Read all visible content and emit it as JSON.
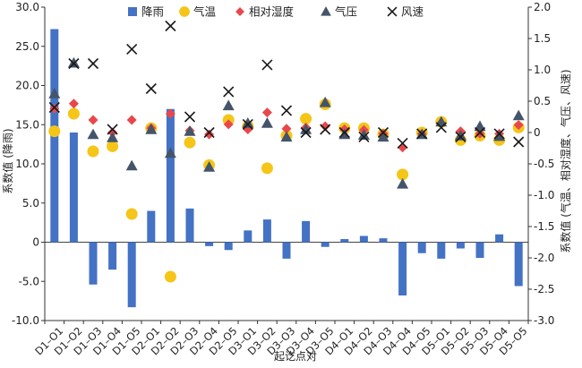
{
  "chart_data": {
    "type": "bar+scatter",
    "xlabel": "起讫点对",
    "ylabel_left": "系数值 (降雨)",
    "ylabel_right": "系数值 (气温、相对湿度、气压、风速)",
    "ylim_left": [
      -10,
      30
    ],
    "ylim_right": [
      -3,
      2
    ],
    "yticks_left": [
      "-10.0",
      "-5.0",
      "0",
      "5.0",
      "10.0",
      "15.0",
      "20.0",
      "25.0",
      "30.0"
    ],
    "yticks_right": [
      "-3.0",
      "-2.5",
      "-2.0",
      "-1.5",
      "-1.0",
      "-0.5",
      "0",
      "0.5",
      "1.0",
      "1.5",
      "2.0"
    ],
    "legend_position": "top",
    "categories": [
      "D1–O1",
      "D1–O2",
      "D1–O3",
      "D1–O4",
      "D1–O5",
      "D2–O1",
      "D2–O2",
      "D2–O3",
      "D2–O4",
      "D2–O5",
      "D3–O1",
      "D3–O2",
      "D3–O3",
      "D3–O4",
      "D3–O5",
      "D4–O1",
      "D4–O2",
      "D4–O3",
      "D4–O4",
      "D4–O5",
      "D5–O1",
      "D5–O2",
      "D5–O3",
      "D5–O4",
      "D5–O5"
    ],
    "series": [
      {
        "name": "降雨",
        "kind": "bar",
        "axis": "left",
        "color": "#4472c4",
        "values": [
          27.2,
          14.0,
          -5.4,
          -3.5,
          -8.3,
          4.0,
          17.0,
          4.3,
          -0.5,
          -1.0,
          1.5,
          2.9,
          -2.1,
          2.7,
          -0.6,
          0.4,
          0.8,
          0.5,
          -6.8,
          -1.4,
          -2.1,
          -0.8,
          -2.0,
          1.0,
          -5.6
        ]
      },
      {
        "name": "气温",
        "kind": "circle",
        "axis": "right",
        "color": "#f5c518",
        "values": [
          0.02,
          0.3,
          -0.3,
          -0.22,
          -1.3,
          0.07,
          -2.3,
          -0.16,
          -0.52,
          0.2,
          0.1,
          -0.57,
          -0.05,
          0.22,
          0.45,
          0.07,
          0.07,
          -0.03,
          -0.67,
          0.0,
          0.17,
          -0.12,
          -0.05,
          -0.12,
          0.08
        ]
      },
      {
        "name": "相对湿度",
        "kind": "diamond",
        "axis": "right",
        "color": "#e8484b",
        "values": [
          0.38,
          0.46,
          0.2,
          0.0,
          0.2,
          0.07,
          0.3,
          0.03,
          -0.03,
          0.13,
          0.05,
          0.32,
          0.06,
          0.08,
          0.1,
          0.05,
          0.04,
          -0.02,
          -0.24,
          -0.02,
          0.15,
          0.02,
          -0.02,
          -0.02,
          0.12
        ]
      },
      {
        "name": "气压",
        "kind": "triangle",
        "axis": "right",
        "color": "#44546a",
        "values": [
          0.62,
          1.11,
          -0.03,
          -0.08,
          -0.53,
          0.05,
          -0.33,
          0.02,
          -0.55,
          0.43,
          0.15,
          0.15,
          -0.07,
          0.05,
          0.48,
          -0.03,
          -0.04,
          -0.07,
          -0.82,
          -0.03,
          0.17,
          -0.05,
          0.1,
          -0.06,
          0.27
        ]
      },
      {
        "name": "风速",
        "kind": "x",
        "axis": "right",
        "color": "#1a1a1a",
        "values": [
          0.4,
          1.1,
          1.1,
          0.05,
          1.33,
          0.7,
          1.7,
          0.25,
          0.0,
          0.65,
          0.13,
          1.08,
          0.35,
          0.0,
          0.05,
          0.0,
          -0.07,
          0.0,
          -0.17,
          -0.02,
          0.08,
          -0.07,
          0.0,
          -0.02,
          -0.15
        ]
      }
    ]
  }
}
